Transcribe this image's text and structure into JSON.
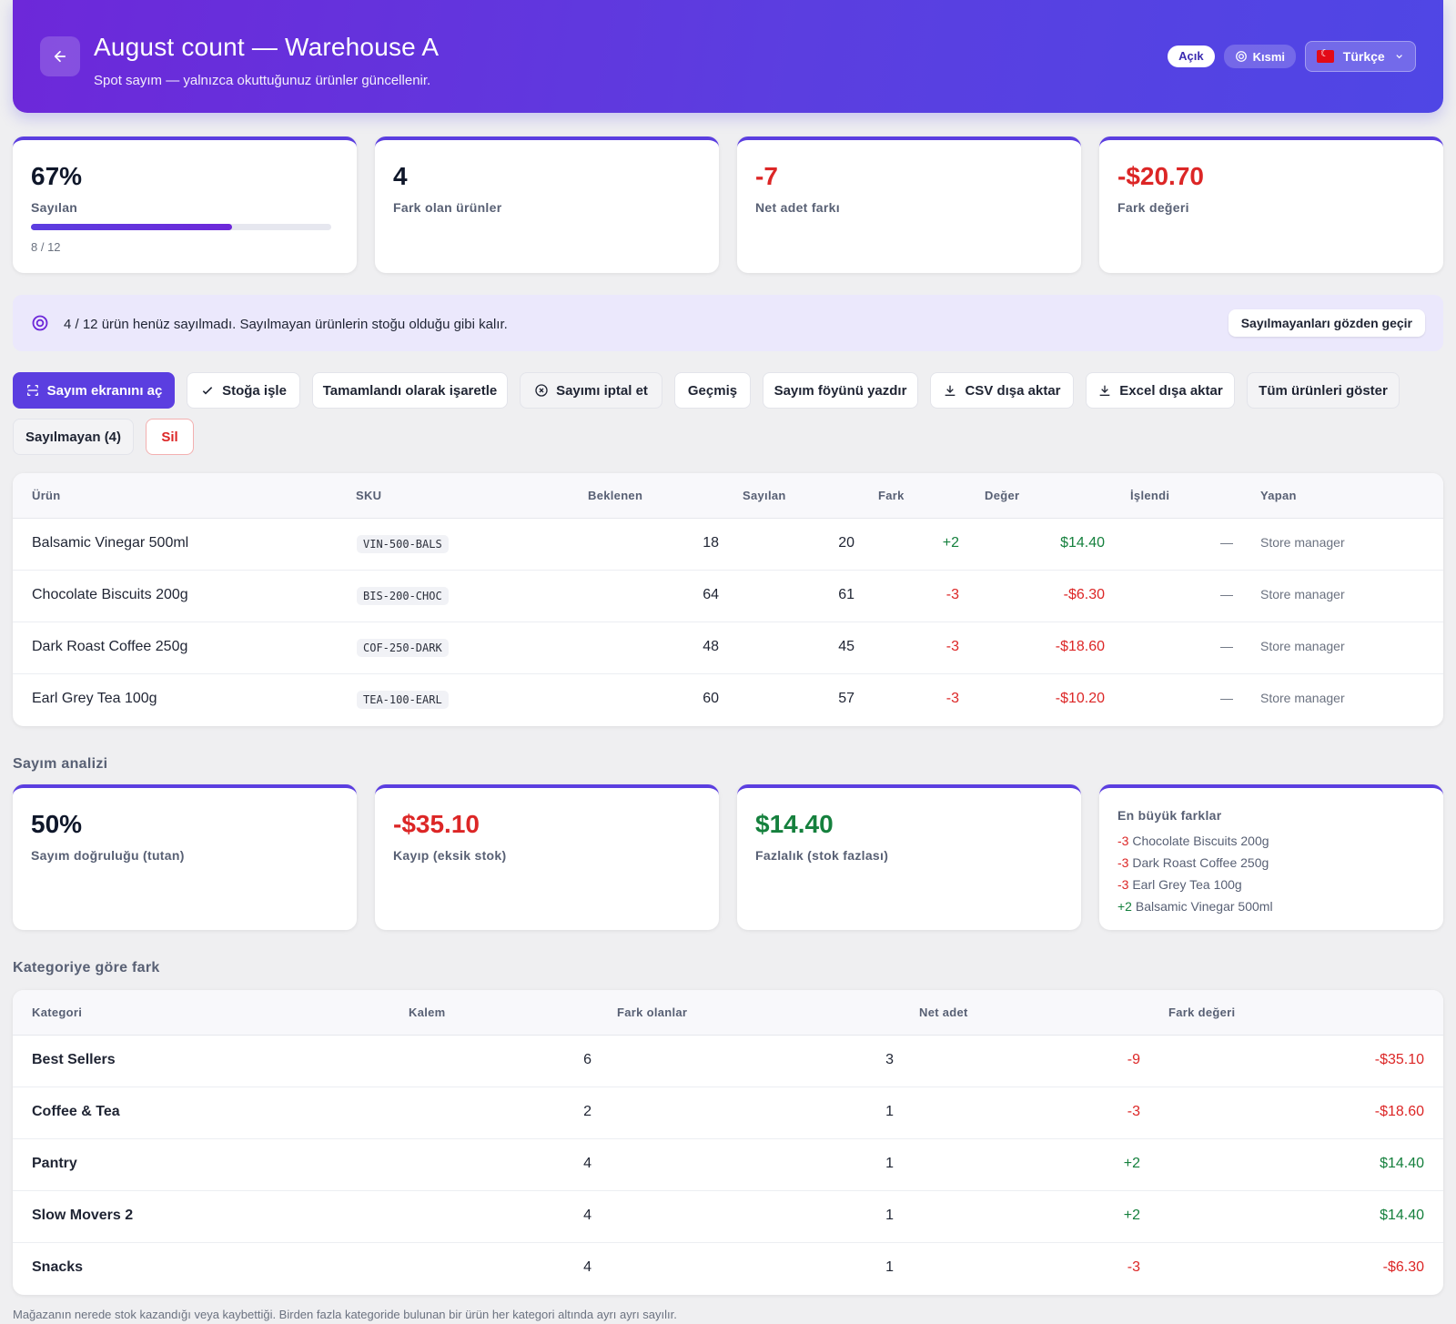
{
  "header": {
    "title": "August count — Warehouse A",
    "subtitle": "Spot sayım — yalnızca okuttuğunuz ürünler güncellenir.",
    "status_open": "Açık",
    "status_partial": "Kısmi",
    "language": "Türkçe"
  },
  "kpis": {
    "counted_pct": "67%",
    "counted_label": "Sayılan",
    "counted_progress": 0.67,
    "counted_sub": "8 / 12",
    "variance_items": "4",
    "variance_items_label": "Fark olan ürünler",
    "net_qty": "-7",
    "net_qty_label": "Net adet farkı",
    "variance_value": "-$20.70",
    "variance_value_label": "Fark değeri"
  },
  "notice": {
    "text": "4 / 12 ürün henüz sayılmadı. Sayılmayan ürünlerin stoğu olduğu gibi kalır.",
    "button": "Sayılmayanları gözden geçir"
  },
  "toolbar": {
    "open_count_screen": "Sayım ekranını aç",
    "post_to_stock": "Stoğa işle",
    "mark_complete": "Tamamlandı olarak işaretle",
    "cancel_count": "Sayımı iptal et",
    "history": "Geçmiş",
    "print_sheet": "Sayım föyünü yazdır",
    "export_csv": "CSV dışa aktar",
    "export_excel": "Excel dışa aktar",
    "show_all": "Tüm ürünleri göster",
    "uncounted": "Sayılmayan (4)",
    "delete": "Sil"
  },
  "items_table": {
    "headers": [
      "Ürün",
      "SKU",
      "Beklenen",
      "Sayılan",
      "Fark",
      "Değer",
      "İşlendi",
      "Yapan"
    ],
    "rows": [
      {
        "product": "Balsamic Vinegar 500ml",
        "sku": "VIN-500-BALS",
        "expected": "18",
        "counted": "20",
        "diff": "+2",
        "value": "$14.40",
        "posted": "—",
        "by": "Store manager"
      },
      {
        "product": "Chocolate Biscuits 200g",
        "sku": "BIS-200-CHOC",
        "expected": "64",
        "counted": "61",
        "diff": "-3",
        "value": "-$6.30",
        "posted": "—",
        "by": "Store manager"
      },
      {
        "product": "Dark Roast Coffee 250g",
        "sku": "COF-250-DARK",
        "expected": "48",
        "counted": "45",
        "diff": "-3",
        "value": "-$18.60",
        "posted": "—",
        "by": "Store manager"
      },
      {
        "product": "Earl Grey Tea 100g",
        "sku": "TEA-100-EARL",
        "expected": "60",
        "counted": "57",
        "diff": "-3",
        "value": "-$10.20",
        "posted": "—",
        "by": "Store manager"
      }
    ]
  },
  "analysis": {
    "title": "Sayım analizi",
    "accuracy": "50%",
    "accuracy_label": "Sayım doğruluğu (tutan)",
    "shrink": "-$35.10",
    "shrink_label": "Kayıp (eksik stok)",
    "surplus": "$14.40",
    "surplus_label": "Fazlalık (stok fazlası)",
    "largest_title": "En büyük farklar",
    "largest": [
      {
        "diff": "-3",
        "name": "Chocolate Biscuits 200g"
      },
      {
        "diff": "-3",
        "name": "Dark Roast Coffee 250g"
      },
      {
        "diff": "-3",
        "name": "Earl Grey Tea 100g"
      },
      {
        "diff": "+2",
        "name": "Balsamic Vinegar 500ml"
      }
    ]
  },
  "category_table": {
    "title": "Kategoriye göre fark",
    "headers": [
      "Kategori",
      "Kalem",
      "Fark olanlar",
      "Net adet",
      "Fark değeri"
    ],
    "rows": [
      {
        "category": "Best Sellers",
        "items": "6",
        "with_diff": "3",
        "net_qty": "-9",
        "value": "-$35.10"
      },
      {
        "category": "Coffee & Tea",
        "items": "2",
        "with_diff": "1",
        "net_qty": "-3",
        "value": "-$18.60"
      },
      {
        "category": "Pantry",
        "items": "4",
        "with_diff": "1",
        "net_qty": "+2",
        "value": "$14.40"
      },
      {
        "category": "Slow Movers 2",
        "items": "4",
        "with_diff": "1",
        "net_qty": "+2",
        "value": "$14.40"
      },
      {
        "category": "Snacks",
        "items": "4",
        "with_diff": "1",
        "net_qty": "-3",
        "value": "-$6.30"
      }
    ],
    "footnote": "Mağazanın nerede stok kazandığı veya kaybettiği. Birden fazla kategoride bulunan bir ürün her kategori altında ayrı ayrı sayılır."
  },
  "colors": {
    "accent": "#5b3ee0",
    "negative": "#dc2626",
    "positive": "#15803d"
  }
}
